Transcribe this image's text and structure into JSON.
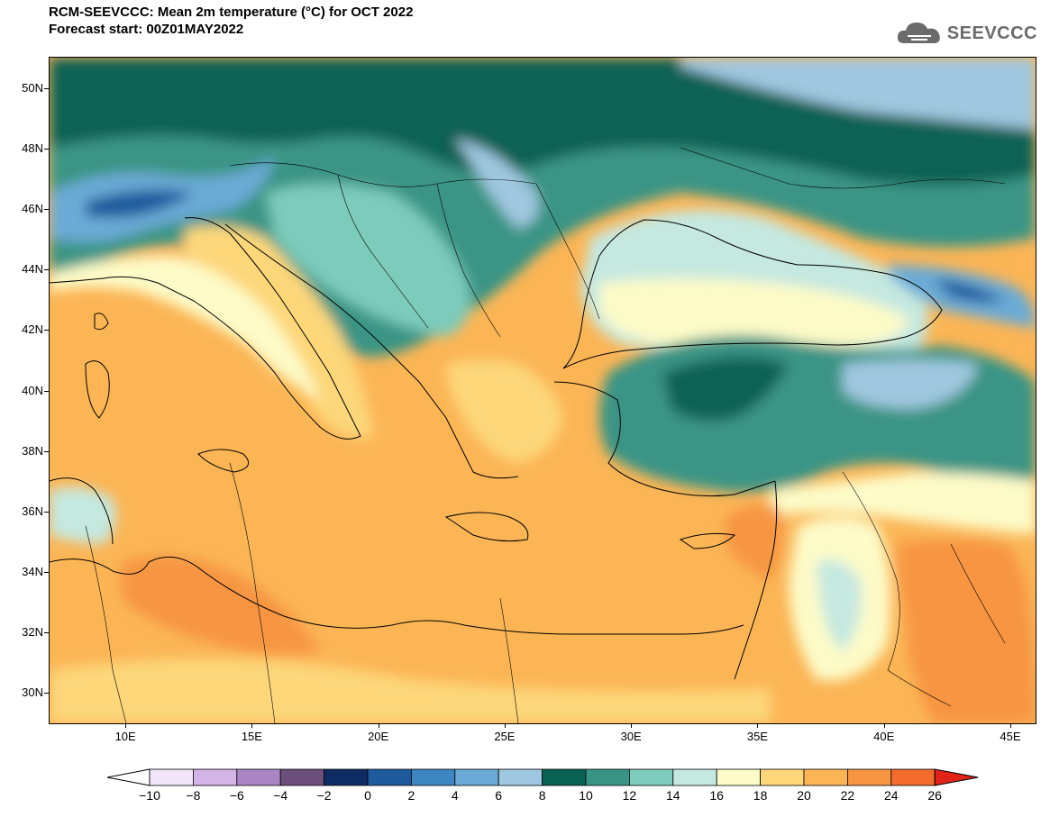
{
  "header": {
    "title": "RCM-SEEVCCC: Mean 2m temperature (°C) for OCT 2022",
    "subtitle": "Forecast start: 00Z01MAY2022"
  },
  "logo": {
    "text": "SEEVCCC",
    "icon": "cloud-logo-icon"
  },
  "map": {
    "lat_labels": [
      "50N",
      "48N",
      "46N",
      "44N",
      "42N",
      "40N",
      "38N",
      "36N",
      "34N",
      "32N",
      "30N"
    ],
    "lon_labels": [
      "10E",
      "15E",
      "20E",
      "25E",
      "30E",
      "35E",
      "40E",
      "45E"
    ],
    "lat_values": [
      50,
      48,
      46,
      44,
      42,
      40,
      38,
      36,
      34,
      32,
      30
    ],
    "lon_values": [
      10,
      15,
      20,
      25,
      30,
      35,
      40,
      45
    ],
    "extent": {
      "lon_min": 7,
      "lon_max": 46,
      "lat_min": 29,
      "lat_max": 51
    }
  },
  "colorbar": {
    "labels": [
      "−10",
      "−8",
      "−6",
      "−4",
      "−2",
      "0",
      "2",
      "4",
      "6",
      "8",
      "10",
      "12",
      "14",
      "16",
      "18",
      "20",
      "22",
      "24",
      "26"
    ],
    "colors": [
      "#f0e6f7",
      "#d4b3e6",
      "#a985c4",
      "#6d4f7e",
      "#0e2c63",
      "#1e5a9c",
      "#3d86c2",
      "#6aaad6",
      "#9fc7e0",
      "#0a6255",
      "#3a9485",
      "#7ccbbb",
      "#c5e8e0",
      "#fdfbc8",
      "#fdd77a",
      "#fbb555",
      "#f79542",
      "#f46b2e"
    ],
    "under_color": "#ffffff",
    "over_color": "#e2231a"
  }
}
